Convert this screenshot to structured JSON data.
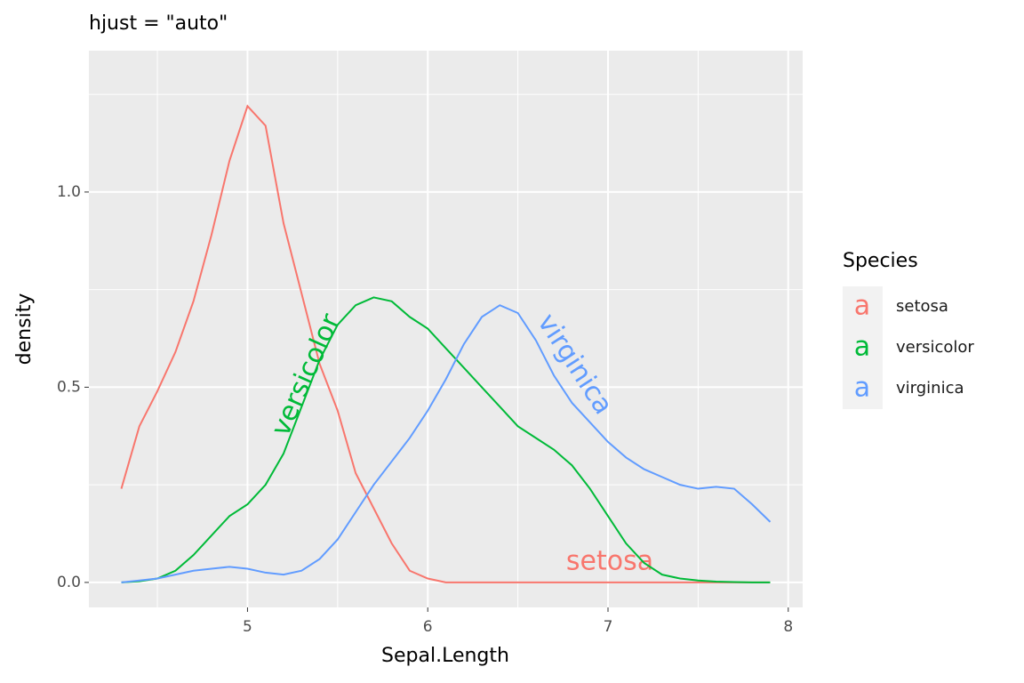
{
  "chart_data": {
    "type": "line",
    "title": "hjust = \"auto\"",
    "x_label": "Sepal.Length",
    "y_label": "density",
    "legend_title": "Species",
    "legend_key": "a",
    "legend_position": "right",
    "x": [
      4.3,
      4.4,
      4.5,
      4.6,
      4.7,
      4.8,
      4.9,
      5.0,
      5.1,
      5.2,
      5.3,
      5.4,
      5.5,
      5.6,
      5.7,
      5.8,
      5.9,
      6.0,
      6.1,
      6.2,
      6.3,
      6.4,
      6.5,
      6.6,
      6.7,
      6.8,
      6.9,
      7.0,
      7.1,
      7.2,
      7.3,
      7.4,
      7.5,
      7.6,
      7.7,
      7.8,
      7.9
    ],
    "series": [
      {
        "name": "setosa",
        "color": "#F8766D",
        "values": [
          0.24,
          0.4,
          0.49,
          0.59,
          0.72,
          0.89,
          1.08,
          1.22,
          1.17,
          0.92,
          0.74,
          0.56,
          0.44,
          0.28,
          0.19,
          0.1,
          0.03,
          0.01,
          0,
          0,
          0,
          0,
          0,
          0,
          0,
          0,
          0,
          0,
          0,
          0,
          0,
          0,
          0,
          0,
          0,
          0,
          0
        ]
      },
      {
        "name": "versicolor",
        "color": "#00BA38",
        "values": [
          0,
          0.003,
          0.01,
          0.03,
          0.07,
          0.12,
          0.17,
          0.2,
          0.25,
          0.33,
          0.45,
          0.57,
          0.66,
          0.71,
          0.73,
          0.72,
          0.68,
          0.65,
          0.6,
          0.55,
          0.5,
          0.45,
          0.4,
          0.37,
          0.34,
          0.3,
          0.24,
          0.17,
          0.1,
          0.05,
          0.02,
          0.01,
          0.005,
          0.002,
          0.001,
          0,
          0
        ]
      },
      {
        "name": "virginica",
        "color": "#619CFF",
        "values": [
          0,
          0.005,
          0.01,
          0.02,
          0.03,
          0.035,
          0.04,
          0.035,
          0.025,
          0.02,
          0.03,
          0.06,
          0.11,
          0.18,
          0.25,
          0.31,
          0.37,
          0.44,
          0.52,
          0.61,
          0.68,
          0.71,
          0.69,
          0.62,
          0.53,
          0.46,
          0.41,
          0.36,
          0.32,
          0.29,
          0.27,
          0.25,
          0.24,
          0.245,
          0.24,
          0.2,
          0.155
        ]
      }
    ],
    "xlim": [
      4.12,
      8.08
    ],
    "xticks": [
      5,
      6,
      7,
      8
    ],
    "ylim": [
      -0.064,
      1.362
    ],
    "yticks": [
      {
        "value": 0,
        "label": "0.0"
      },
      {
        "value": 0.5,
        "label": "0.5"
      },
      {
        "value": 1,
        "label": "1.0"
      }
    ],
    "grid": true
  }
}
